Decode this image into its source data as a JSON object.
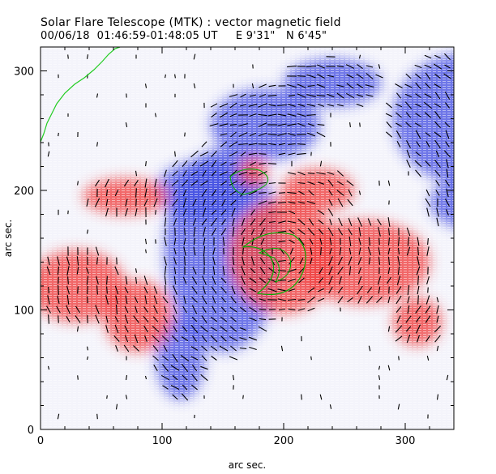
{
  "figure": {
    "title": "Solar Flare Telescope (MTK) : vector magnetic field",
    "subtitle": "00/06/18  01:46:59-01:48:05 UT     E 9'31\"   N 6'45\"",
    "colors": {
      "positive": "#f04040",
      "negative": "#3a46e0",
      "vector": "#000000",
      "contour": "#00b000",
      "limb": "#22cc22"
    }
  },
  "chart_data": {
    "type": "heatmap",
    "xlabel": "arc sec.",
    "ylabel": "arc sec.",
    "xlim": [
      0,
      340
    ],
    "ylim": [
      0,
      320
    ],
    "xticks": [
      "0",
      "100",
      "200",
      "300"
    ],
    "yticks": [
      "0",
      "100",
      "200",
      "300"
    ],
    "regions": [
      {
        "polarity": "negative",
        "x": 150,
        "y": 150,
        "rx": 48,
        "ry": 85
      },
      {
        "polarity": "negative",
        "x": 135,
        "y": 200,
        "rx": 40,
        "ry": 25
      },
      {
        "polarity": "negative",
        "x": 350,
        "y": 260,
        "rx": 60,
        "ry": 55
      },
      {
        "polarity": "negative",
        "x": 395,
        "y": 190,
        "rx": 75,
        "ry": 30
      },
      {
        "polarity": "negative",
        "x": 185,
        "y": 255,
        "rx": 45,
        "ry": 30
      },
      {
        "polarity": "negative",
        "x": 240,
        "y": 290,
        "rx": 40,
        "ry": 20
      },
      {
        "polarity": "negative",
        "x": 115,
        "y": 60,
        "rx": 20,
        "ry": 35
      },
      {
        "polarity": "positive",
        "x": 200,
        "y": 145,
        "rx": 45,
        "ry": 48
      },
      {
        "polarity": "positive",
        "x": 228,
        "y": 200,
        "rx": 30,
        "ry": 18
      },
      {
        "polarity": "positive",
        "x": 265,
        "y": 140,
        "rx": 55,
        "ry": 35
      },
      {
        "polarity": "positive",
        "x": 80,
        "y": 95,
        "rx": 28,
        "ry": 30
      },
      {
        "polarity": "positive",
        "x": 30,
        "y": 120,
        "rx": 40,
        "ry": 30
      },
      {
        "polarity": "positive",
        "x": 175,
        "y": 215,
        "rx": 12,
        "ry": 12
      },
      {
        "polarity": "positive",
        "x": 310,
        "y": 90,
        "rx": 20,
        "ry": 20
      },
      {
        "polarity": "positive",
        "x": 70,
        "y": 195,
        "rx": 35,
        "ry": 15
      }
    ]
  }
}
